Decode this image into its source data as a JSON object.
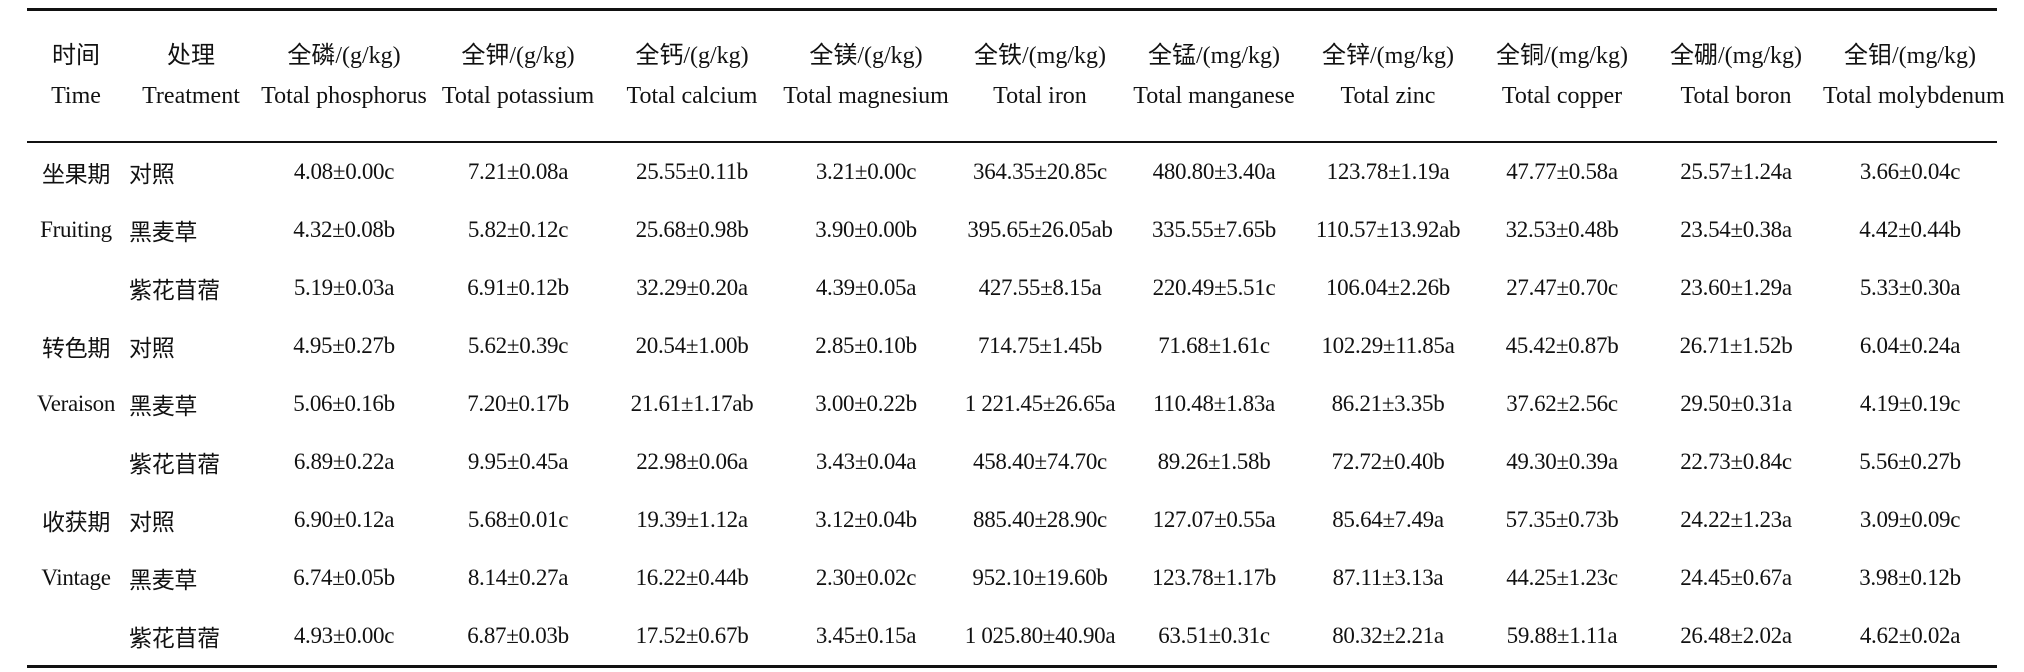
{
  "header": {
    "columns": [
      {
        "zh": "时间",
        "en": "Time"
      },
      {
        "zh": "处理",
        "en": "Treatment"
      },
      {
        "zh": "全磷/(g/kg)",
        "en": "Total phosphorus"
      },
      {
        "zh": "全钾/(g/kg)",
        "en": "Total potassium"
      },
      {
        "zh": "全钙/(g/kg)",
        "en": "Total calcium"
      },
      {
        "zh": "全镁/(g/kg)",
        "en": "Total magnesium"
      },
      {
        "zh": "全铁/(mg/kg)",
        "en": "Total iron"
      },
      {
        "zh": "全锰/(mg/kg)",
        "en": "Total manganese"
      },
      {
        "zh": "全锌/(mg/kg)",
        "en": "Total zinc"
      },
      {
        "zh": "全铜/(mg/kg)",
        "en": "Total copper"
      },
      {
        "zh": "全硼/(mg/kg)",
        "en": "Total boron"
      },
      {
        "zh": "全钼/(mg/kg)",
        "en": "Total molybdenum"
      }
    ]
  },
  "groups": [
    {
      "time_zh": "坐果期",
      "time_en": "Fruiting",
      "rows": [
        {
          "treatment": "对照",
          "values": [
            "4.08±0.00c",
            "7.21±0.08a",
            "25.55±0.11b",
            "3.21±0.00c",
            "364.35±20.85c",
            "480.80±3.40a",
            "123.78±1.19a",
            "47.77±0.58a",
            "25.57±1.24a",
            "3.66±0.04c"
          ]
        },
        {
          "treatment": "黑麦草",
          "values": [
            "4.32±0.08b",
            "5.82±0.12c",
            "25.68±0.98b",
            "3.90±0.00b",
            "395.65±26.05ab",
            "335.55±7.65b",
            "110.57±13.92ab",
            "32.53±0.48b",
            "23.54±0.38a",
            "4.42±0.44b"
          ]
        },
        {
          "treatment": "紫花苜蓿",
          "values": [
            "5.19±0.03a",
            "6.91±0.12b",
            "32.29±0.20a",
            "4.39±0.05a",
            "427.55±8.15a",
            "220.49±5.51c",
            "106.04±2.26b",
            "27.47±0.70c",
            "23.60±1.29a",
            "5.33±0.30a"
          ]
        }
      ]
    },
    {
      "time_zh": "转色期",
      "time_en": "Veraison",
      "rows": [
        {
          "treatment": "对照",
          "values": [
            "4.95±0.27b",
            "5.62±0.39c",
            "20.54±1.00b",
            "2.85±0.10b",
            "714.75±1.45b",
            "71.68±1.61c",
            "102.29±11.85a",
            "45.42±0.87b",
            "26.71±1.52b",
            "6.04±0.24a"
          ]
        },
        {
          "treatment": "黑麦草",
          "values": [
            "5.06±0.16b",
            "7.20±0.17b",
            "21.61±1.17ab",
            "3.00±0.22b",
            "1 221.45±26.65a",
            "110.48±1.83a",
            "86.21±3.35b",
            "37.62±2.56c",
            "29.50±0.31a",
            "4.19±0.19c"
          ]
        },
        {
          "treatment": "紫花苜蓿",
          "values": [
            "6.89±0.22a",
            "9.95±0.45a",
            "22.98±0.06a",
            "3.43±0.04a",
            "458.40±74.70c",
            "89.26±1.58b",
            "72.72±0.40b",
            "49.30±0.39a",
            "22.73±0.84c",
            "5.56±0.27b"
          ]
        }
      ]
    },
    {
      "time_zh": "收获期",
      "time_en": "Vintage",
      "rows": [
        {
          "treatment": "对照",
          "values": [
            "6.90±0.12a",
            "5.68±0.01c",
            "19.39±1.12a",
            "3.12±0.04b",
            "885.40±28.90c",
            "127.07±0.55a",
            "85.64±7.49a",
            "57.35±0.73b",
            "24.22±1.23a",
            "3.09±0.09c"
          ]
        },
        {
          "treatment": "黑麦草",
          "values": [
            "6.74±0.05b",
            "8.14±0.27a",
            "16.22±0.44b",
            "2.30±0.02c",
            "952.10±19.60b",
            "123.78±1.17b",
            "87.11±3.13a",
            "44.25±1.23c",
            "24.45±0.67a",
            "3.98±0.12b"
          ]
        },
        {
          "treatment": "紫花苜蓿",
          "values": [
            "4.93±0.00c",
            "6.87±0.03b",
            "17.52±0.67b",
            "3.45±0.15a",
            "1 025.80±40.90a",
            "63.51±0.31c",
            "80.32±2.21a",
            "59.88±1.11a",
            "26.48±2.02a",
            "4.62±0.02a"
          ]
        }
      ]
    }
  ]
}
